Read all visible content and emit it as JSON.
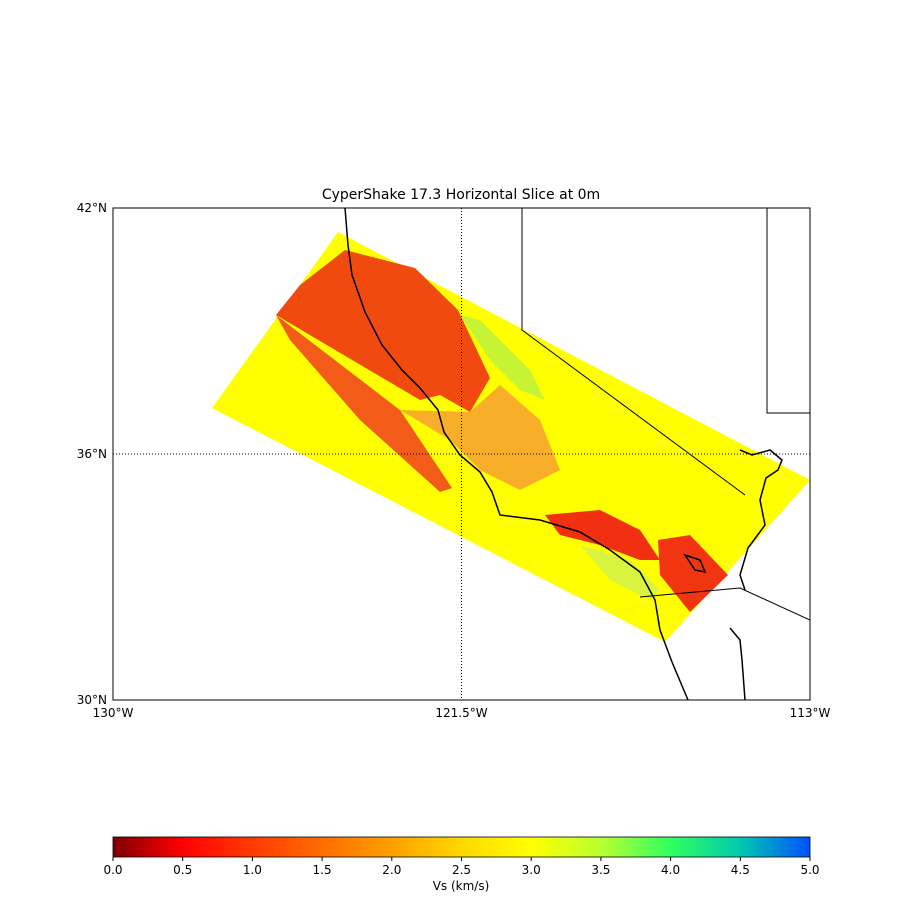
{
  "map": {
    "title": "CyperShake 17.3 Horizontal Slice at 0m",
    "xlim": [
      -130,
      -113
    ],
    "ylim": [
      30,
      42
    ],
    "xticks": [
      {
        "value": -130,
        "label": "130°W"
      },
      {
        "value": -121.5,
        "label": "121.5°W"
      },
      {
        "value": -113,
        "label": "113°W"
      }
    ],
    "yticks": [
      {
        "value": 30,
        "label": "30°N"
      },
      {
        "value": 36,
        "label": "36°N"
      },
      {
        "value": 42,
        "label": "42°N"
      }
    ],
    "grid": true
  },
  "colorbar": {
    "label": "Vs (km/s)",
    "lim": [
      0,
      5
    ],
    "ticks": [
      {
        "value": 0,
        "label": "0.0"
      },
      {
        "value": 0.5,
        "label": "0.5"
      },
      {
        "value": 1,
        "label": "1.0"
      },
      {
        "value": 1.5,
        "label": "1.5"
      },
      {
        "value": 2,
        "label": "2.0"
      },
      {
        "value": 2.5,
        "label": "2.5"
      },
      {
        "value": 3,
        "label": "3.0"
      },
      {
        "value": 3.5,
        "label": "3.5"
      },
      {
        "value": 4,
        "label": "4.0"
      },
      {
        "value": 4.5,
        "label": "4.5"
      },
      {
        "value": 5,
        "label": "5.0"
      }
    ]
  }
}
